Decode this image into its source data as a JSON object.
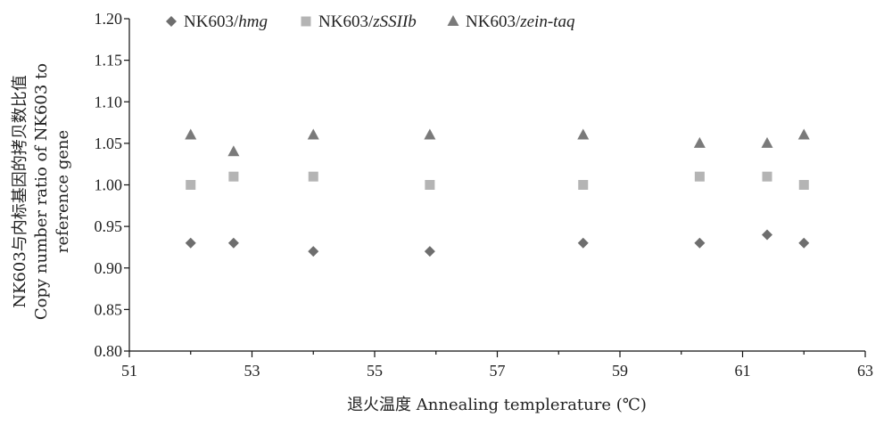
{
  "chart_data": {
    "type": "scatter",
    "xlabel": "退火温度 Annealing templerature (℃)",
    "ylabel_lines": [
      "NK603与内标基因的拷贝数比值",
      "Copy number ratio of NK603 to",
      "reference gene"
    ],
    "xlim": [
      51,
      63
    ],
    "ylim": [
      0.8,
      1.2
    ],
    "x_ticks": [
      "51",
      "53",
      "55",
      "57",
      "59",
      "61",
      "63"
    ],
    "y_ticks": [
      "0.80",
      "0.85",
      "0.90",
      "0.95",
      "1.00",
      "1.05",
      "1.10",
      "1.15",
      "1.20"
    ],
    "legend_position": "top",
    "x": [
      52.0,
      52.7,
      54.0,
      55.9,
      58.4,
      60.3,
      61.4,
      62.0
    ],
    "series": [
      {
        "name_prefix": "NK603/",
        "name_italic": "hmg",
        "marker": "diamond",
        "color": "#6e6e6e",
        "values": [
          0.93,
          0.93,
          0.92,
          0.92,
          0.93,
          0.93,
          0.94,
          0.93
        ]
      },
      {
        "name_prefix": "NK603/",
        "name_italic": "zSSIIb",
        "marker": "square",
        "color": "#b4b4b4",
        "values": [
          1.0,
          1.01,
          1.01,
          1.0,
          1.0,
          1.01,
          1.01,
          1.0
        ]
      },
      {
        "name_prefix": "NK603/",
        "name_italic": "zein-taq",
        "marker": "triangle",
        "color": "#7a7a7a",
        "values": [
          1.06,
          1.04,
          1.06,
          1.06,
          1.06,
          1.05,
          1.05,
          1.06
        ]
      }
    ]
  }
}
